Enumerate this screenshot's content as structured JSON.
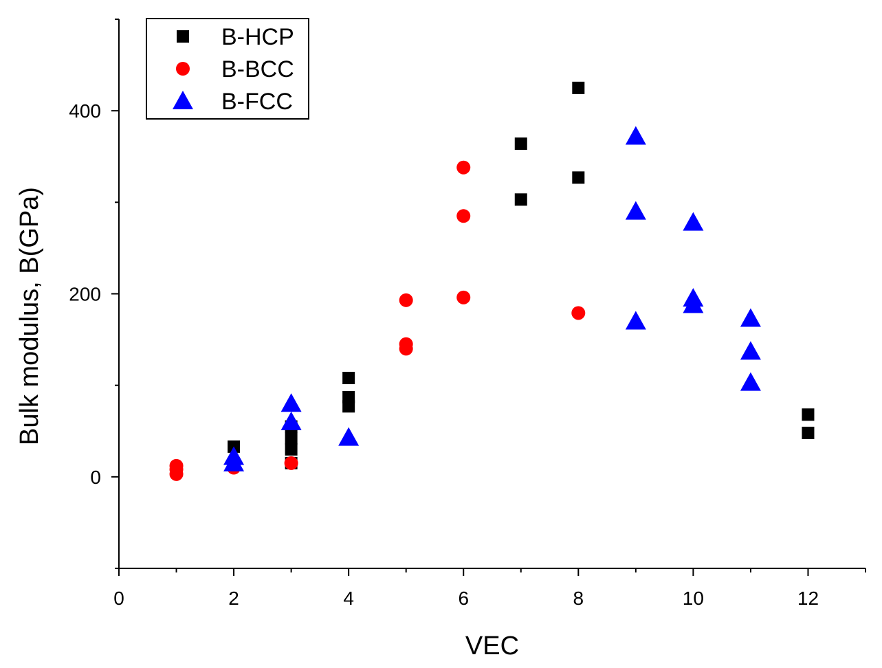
{
  "chart_data": {
    "type": "scatter",
    "title": "",
    "xlabel": "VEC",
    "ylabel": "Bulk modulus,  B(GPa)",
    "xlim": [
      0,
      13
    ],
    "ylim": [
      -100,
      500
    ],
    "xticks": [
      0,
      2,
      4,
      6,
      8,
      10,
      12
    ],
    "yticks": [
      0,
      200,
      400
    ],
    "minor_xticks": [
      1,
      3,
      5,
      7,
      9,
      11,
      13
    ],
    "minor_yticks": [
      -100,
      100,
      300,
      500
    ],
    "grid": false,
    "legend_position": "top-left",
    "series": [
      {
        "name": "B-HCP",
        "marker": "square",
        "color": "#000000",
        "x": [
          2,
          3,
          3,
          3,
          3,
          4,
          4,
          4,
          7,
          7,
          8,
          8,
          12,
          12
        ],
        "y": [
          33,
          15,
          30,
          42,
          55,
          108,
          87,
          77,
          364,
          303,
          327,
          425,
          68,
          48
        ]
      },
      {
        "name": "B-BCC",
        "marker": "circle",
        "color": "#ff0000",
        "x": [
          1,
          1,
          1,
          2,
          3,
          5,
          5,
          5,
          6,
          6,
          6,
          8
        ],
        "y": [
          3,
          8,
          12,
          10,
          15,
          193,
          145,
          140,
          338,
          285,
          196,
          179
        ]
      },
      {
        "name": "B-FCC",
        "marker": "triangle",
        "color": "#0000ff",
        "x": [
          2,
          2,
          3,
          3,
          4,
          9,
          9,
          9,
          10,
          10,
          10,
          11,
          11,
          11
        ],
        "y": [
          15,
          22,
          80,
          60,
          43,
          372,
          290,
          170,
          278,
          195,
          188,
          173,
          137,
          103
        ]
      }
    ]
  }
}
